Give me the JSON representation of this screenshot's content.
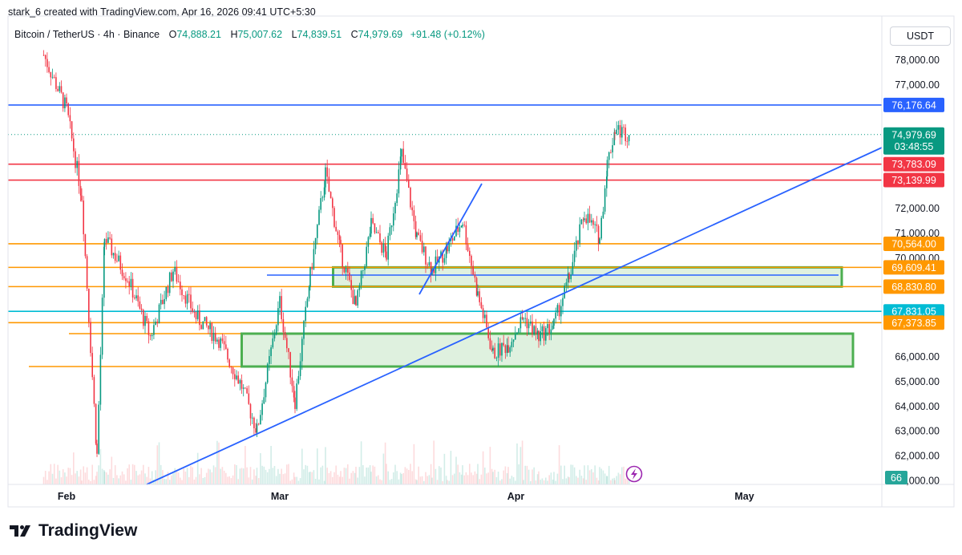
{
  "header": {
    "created_by": "stark_6 created with TradingView.com, Apr 16, 2026 09:41 UTC+5:30"
  },
  "legend": {
    "symbol": "Bitcoin / TetherUS · 4h · Binance",
    "open_label": "O",
    "open": "74,888.21",
    "high_label": "H",
    "high": "75,007.62",
    "low_label": "L",
    "low": "74,839.51",
    "close_label": "C",
    "close": "74,979.69",
    "change": "+91.48 (+0.12%)"
  },
  "currency_button": "USDT",
  "brand": "TradingView",
  "countdown": "03:48:55",
  "volume_badge": "66",
  "colors": {
    "up": "#089981",
    "down": "#f23645",
    "blue_line": "#2962ff",
    "red_line": "#f23645",
    "orange_line": "#ff9800",
    "cyan_line": "#00bcd4",
    "green_box": "#4caf50"
  },
  "chart_data": {
    "type": "candlestick",
    "timeframe": "4h",
    "y_axis_ticks": [
      "78,000.00",
      "77,000.00",
      "72,000.00",
      "71,000.00",
      "70,000.00",
      "66,000.00",
      "65,000.00",
      "64,000.00",
      "63,000.00",
      "62,000.00",
      "61,000.00"
    ],
    "x_axis_ticks": [
      "Feb",
      "Mar",
      "Apr",
      "May"
    ],
    "ylim": [
      61000,
      79000
    ],
    "last_price": 74979.69,
    "horizontal_levels": [
      {
        "price": 76176.64,
        "label": "76,176.64",
        "color": "#2962ff"
      },
      {
        "price": 73783.09,
        "label": "73,783.09",
        "color": "#f23645"
      },
      {
        "price": 73139.99,
        "label": "73,139.99",
        "color": "#f23645"
      },
      {
        "price": 70564.0,
        "label": "70,564.00",
        "color": "#ff9800"
      },
      {
        "price": 69609.41,
        "label": "69,609.41",
        "color": "#ff9800"
      },
      {
        "price": 68830.8,
        "label": "68,830.80",
        "color": "#ff9800"
      },
      {
        "price": 67831.05,
        "label": "67,831.05",
        "color": "#00bcd4"
      },
      {
        "price": 67373.85,
        "label": "67,373.85",
        "color": "#ff9800"
      }
    ],
    "price_path": [
      [
        "2026-01-29",
        78200
      ],
      [
        "2026-02-01",
        76000
      ],
      [
        "2026-02-03",
        72500
      ],
      [
        "2026-02-05",
        62000
      ],
      [
        "2026-02-06",
        70800
      ],
      [
        "2026-02-09",
        69200
      ],
      [
        "2026-02-12",
        66800
      ],
      [
        "2026-02-15",
        69500
      ],
      [
        "2026-02-18",
        67600
      ],
      [
        "2026-02-21",
        66700
      ],
      [
        "2026-02-24",
        64800
      ],
      [
        "2026-02-26",
        63000
      ],
      [
        "2026-03-01",
        68200
      ],
      [
        "2026-03-03",
        64200
      ],
      [
        "2026-03-05",
        69300
      ],
      [
        "2026-03-07",
        73400
      ],
      [
        "2026-03-09",
        70200
      ],
      [
        "2026-03-11",
        68000
      ],
      [
        "2026-03-13",
        71300
      ],
      [
        "2026-03-15",
        70100
      ],
      [
        "2026-03-17",
        74200
      ],
      [
        "2026-03-19",
        70800
      ],
      [
        "2026-03-21",
        69500
      ],
      [
        "2026-03-23",
        70400
      ],
      [
        "2026-03-25",
        71500
      ],
      [
        "2026-03-27",
        68500
      ],
      [
        "2026-03-29",
        66100
      ],
      [
        "2026-03-31",
        66500
      ],
      [
        "2026-04-02",
        67600
      ],
      [
        "2026-04-04",
        66800
      ],
      [
        "2026-04-06",
        67300
      ],
      [
        "2026-04-08",
        69200
      ],
      [
        "2026-04-10",
        71800
      ],
      [
        "2026-04-12",
        70800
      ],
      [
        "2026-04-13",
        73800
      ],
      [
        "2026-04-14",
        75200
      ],
      [
        "2026-04-16",
        74980
      ]
    ]
  }
}
